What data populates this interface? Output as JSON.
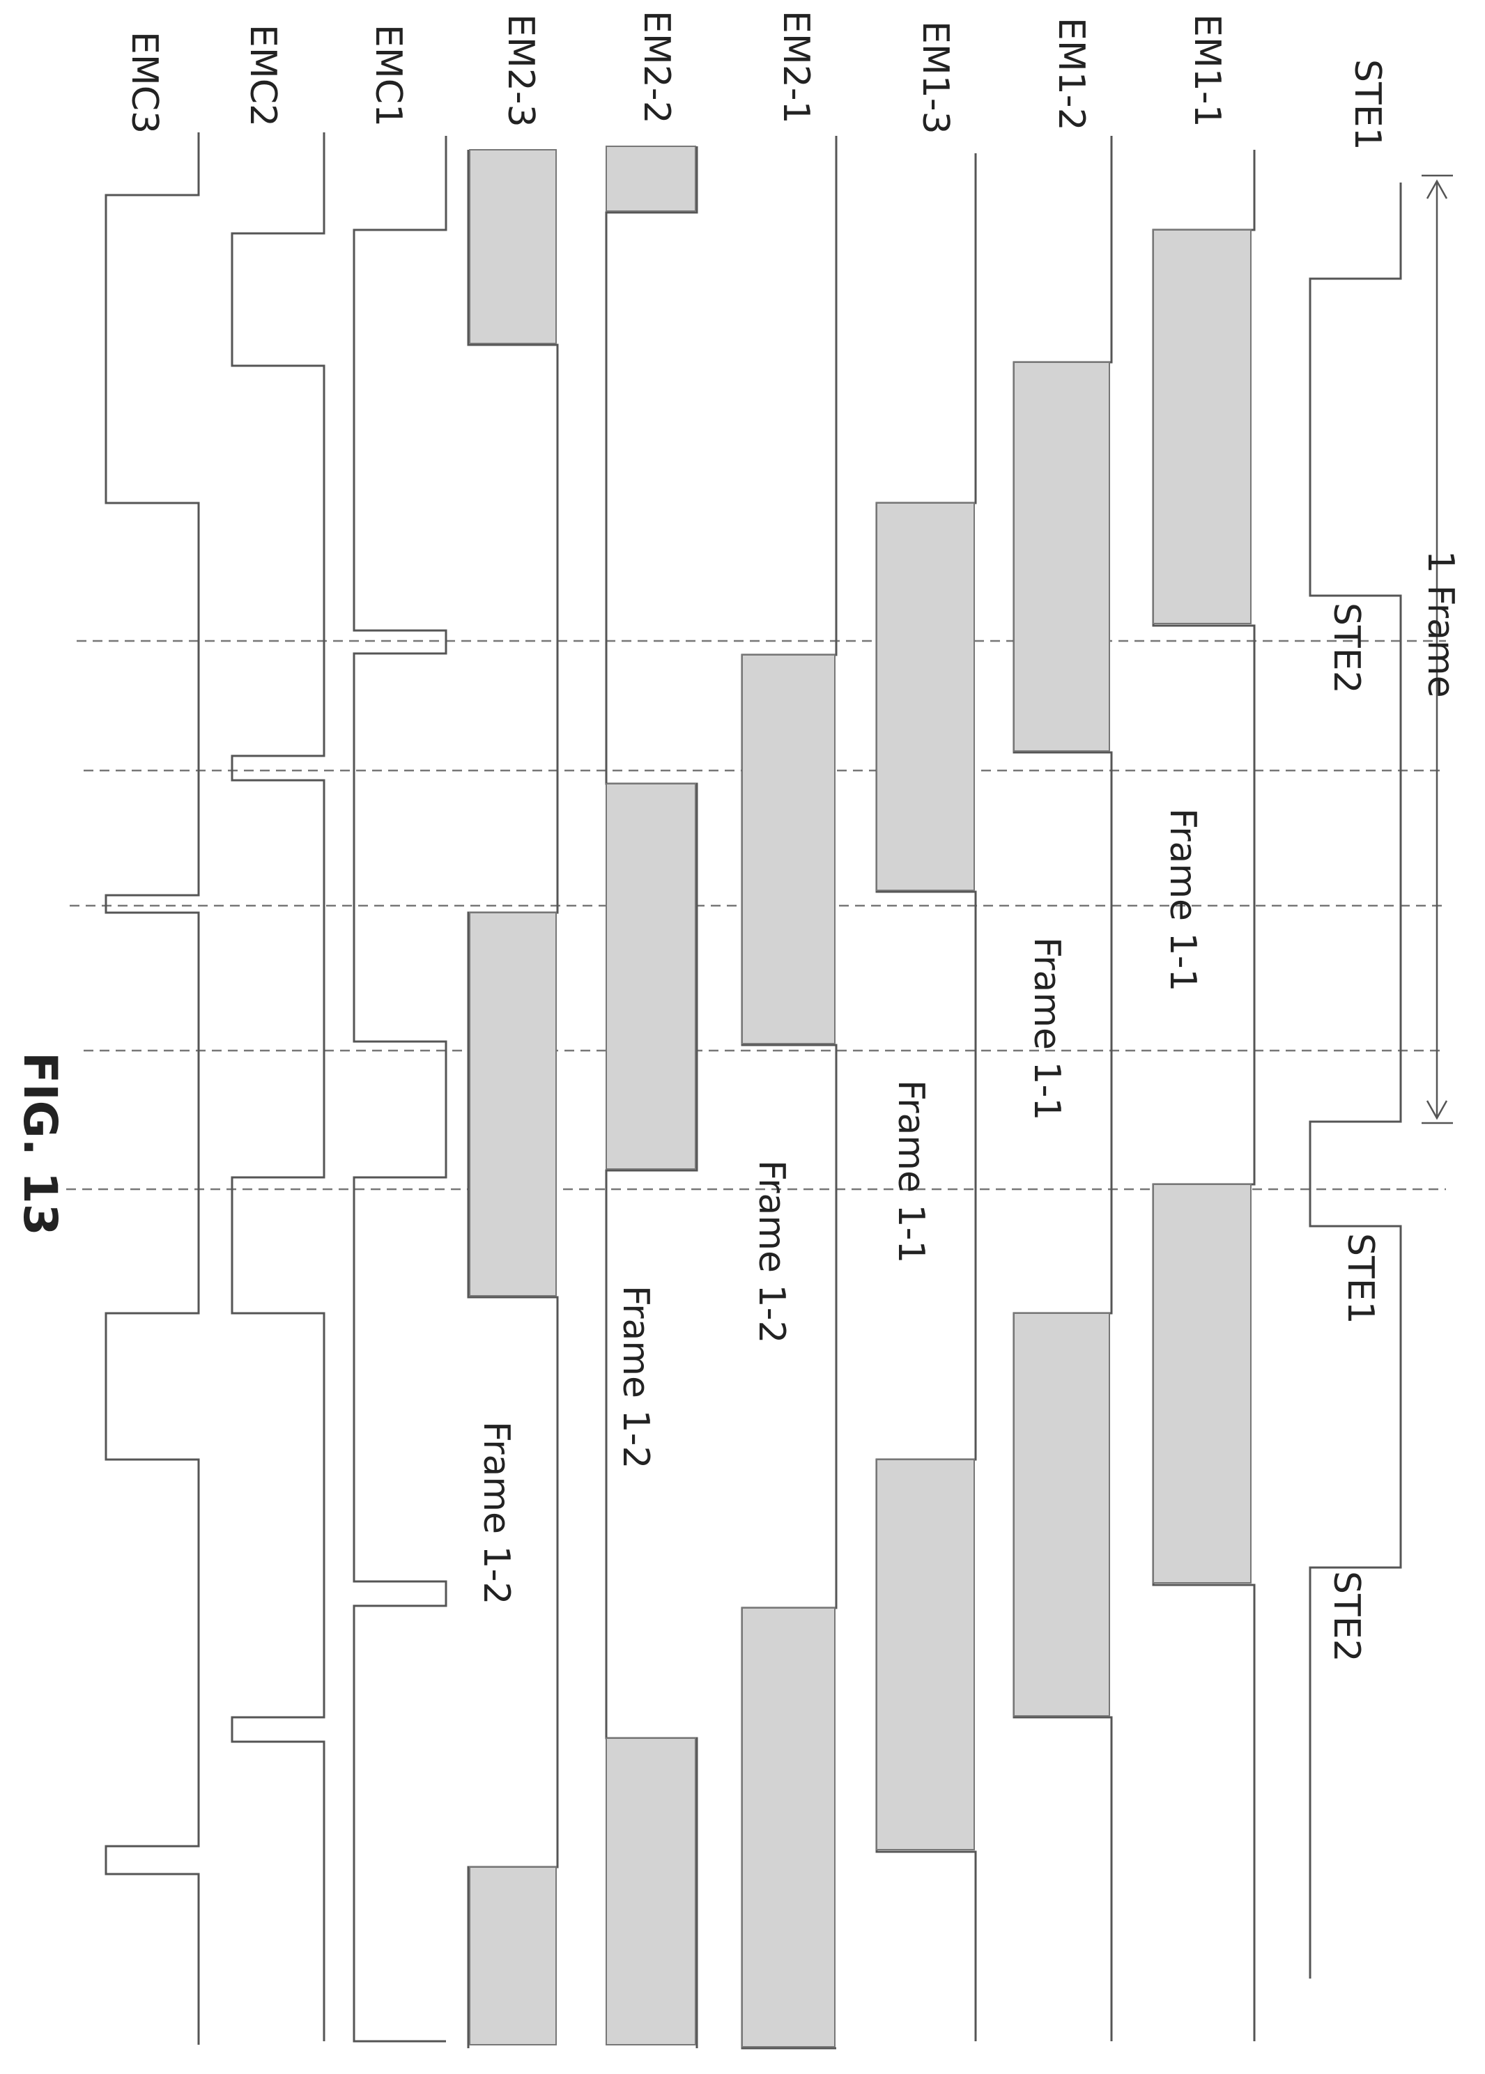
{
  "figure": {
    "label": "FIG. 13",
    "span_label": "1 Frame",
    "signals": [
      {
        "name": "STE1"
      },
      {
        "name": "EM1-1"
      },
      {
        "name": "EM1-2"
      },
      {
        "name": "EM1-3"
      },
      {
        "name": "EM2-1"
      },
      {
        "name": "EM2-2"
      },
      {
        "name": "EM2-3"
      },
      {
        "name": "EMC1"
      },
      {
        "name": "EMC2"
      },
      {
        "name": "EMC3"
      }
    ],
    "inline_labels": [
      "STE2",
      "STE1",
      "STE2"
    ],
    "frame_labels": [
      "Frame 1-1",
      "Frame 1-1",
      "Frame 1-1",
      "Frame 1-2",
      "Frame 1-2",
      "Frame 1-2"
    ]
  }
}
